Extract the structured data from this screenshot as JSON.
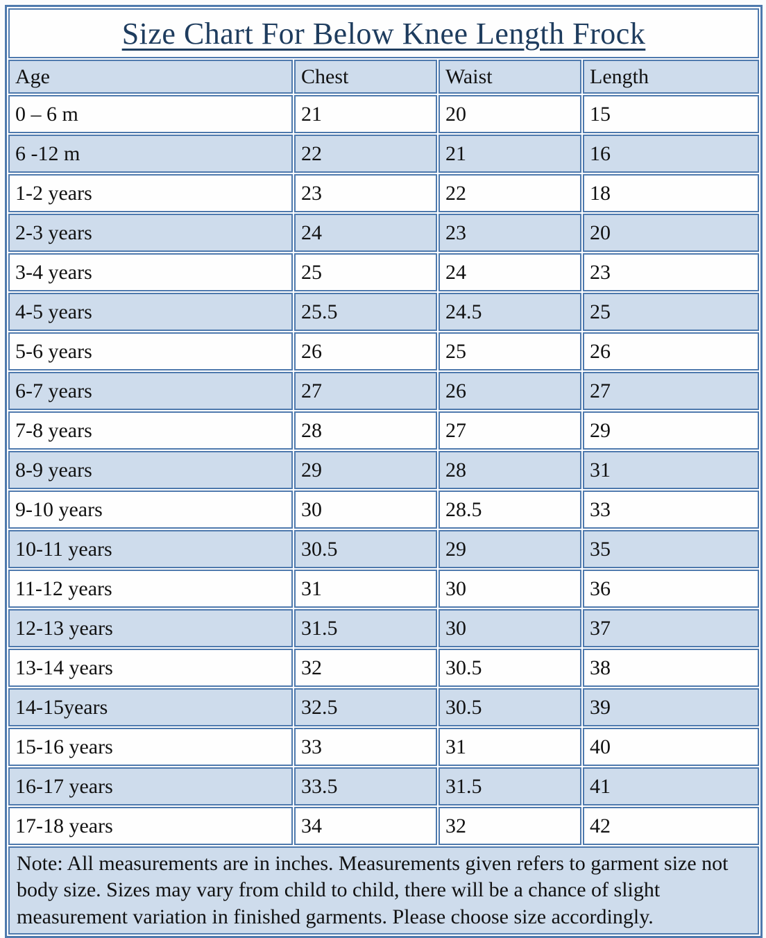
{
  "title": "Size Chart For Below Knee Length Frock",
  "note": "Note: All measurements are in inches. Measurements given refers to garment size not body size. Sizes may vary from child to child, there will be a chance of slight measurement variation in finished garments. Please choose size accordingly.",
  "colors": {
    "border": "#4e79ad",
    "shaded_row": "#cedcec",
    "plain_row": "#fefefe",
    "title_text": "#1e3c5e",
    "body_text": "#111111"
  },
  "chart_data": {
    "type": "table",
    "title": "Size Chart For Below Knee Length Frock",
    "columns": [
      "Age",
      "Chest",
      "Waist",
      "Length"
    ],
    "units": "inches",
    "rows": [
      [
        "0 – 6 m",
        "21",
        "20",
        "15"
      ],
      [
        "6 -12 m",
        "22",
        "21",
        "16"
      ],
      [
        "1-2 years",
        "23",
        "22",
        "18"
      ],
      [
        "2-3 years",
        "24",
        "23",
        "20"
      ],
      [
        "3-4 years",
        "25",
        "24",
        "23"
      ],
      [
        "4-5 years",
        "25.5",
        "24.5",
        "25"
      ],
      [
        "5-6 years",
        "26",
        "25",
        "26"
      ],
      [
        "6-7 years",
        "27",
        "26",
        "27"
      ],
      [
        "7-8 years",
        "28",
        "27",
        "29"
      ],
      [
        "8-9 years",
        "29",
        "28",
        "31"
      ],
      [
        "9-10 years",
        "30",
        "28.5",
        "33"
      ],
      [
        "10-11 years",
        "30.5",
        "29",
        "35"
      ],
      [
        "11-12 years",
        "31",
        "30",
        "36"
      ],
      [
        "12-13 years",
        "31.5",
        "30",
        "37"
      ],
      [
        "13-14 years",
        "32",
        "30.5",
        "38"
      ],
      [
        "14-15years",
        "32.5",
        "30.5",
        "39"
      ],
      [
        "15-16 years",
        "33",
        "31",
        "40"
      ],
      [
        "16-17 years",
        "33.5",
        "31.5",
        "41"
      ],
      [
        "17-18 years",
        "34",
        "32",
        "42"
      ]
    ],
    "layout": {
      "banding": "alternating rows shaded light blue starting with header",
      "note_row": true
    }
  }
}
